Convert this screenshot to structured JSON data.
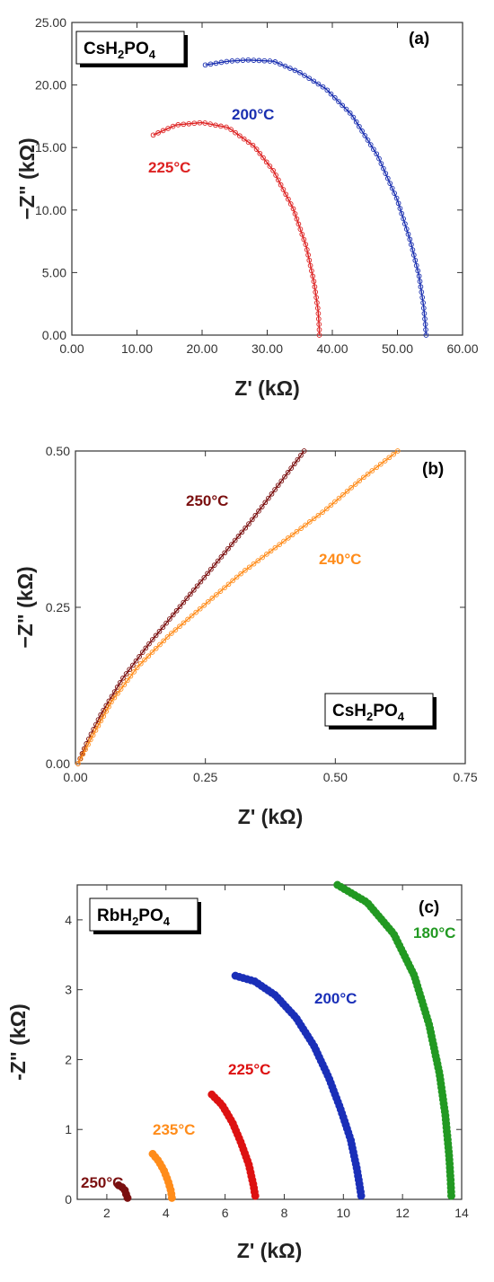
{
  "chart_data": [
    {
      "type": "scatter",
      "panel_label": "(a)",
      "sample": {
        "formula": [
          "Cs",
          "H",
          "2",
          "PO",
          "4"
        ]
      },
      "xlabel": "Z' (kΩ)",
      "ylabel": "−Z\" (kΩ)",
      "xlim": [
        0,
        60
      ],
      "ylim": [
        0,
        25
      ],
      "xticks": [
        0,
        10,
        20,
        30,
        40,
        50,
        60
      ],
      "yticks": [
        0,
        5,
        10,
        15,
        20,
        25
      ],
      "marker": "open-circle-with-line",
      "series": [
        {
          "name": "225°C",
          "color": "#dd2222",
          "x": [
            12.5,
            16,
            20,
            24,
            28,
            31,
            34,
            36,
            37.2,
            37.8,
            38.0,
            38.0
          ],
          "y": [
            16.0,
            16.8,
            17.0,
            16.6,
            15.1,
            13.1,
            10.1,
            7.1,
            4.2,
            2.0,
            0.5,
            0.0
          ]
        },
        {
          "name": "200°C",
          "color": "#1a2fb0",
          "x": [
            20.5,
            24,
            27,
            31,
            35,
            39,
            43,
            47,
            50,
            52,
            53.3,
            54.0,
            54.3,
            54.4
          ],
          "y": [
            21.6,
            21.9,
            22.0,
            21.9,
            21.0,
            19.7,
            17.6,
            14.3,
            10.8,
            7.5,
            4.8,
            2.4,
            0.8,
            0.0
          ]
        }
      ]
    },
    {
      "type": "scatter",
      "panel_label": "(b)",
      "sample": {
        "formula": [
          "Cs",
          "H",
          "2",
          "PO",
          "4"
        ]
      },
      "xlabel": "Z' (kΩ)",
      "ylabel": "−Z\" (kΩ)",
      "xlim": [
        0,
        0.75
      ],
      "ylim": [
        0,
        0.5
      ],
      "xticks": [
        0.0,
        0.25,
        0.5,
        0.75
      ],
      "yticks": [
        0.0,
        0.25,
        0.5
      ],
      "marker": "open-circle-with-line",
      "series": [
        {
          "name": "250°C",
          "color": "#7b1010",
          "x": [
            0.005,
            0.02,
            0.05,
            0.09,
            0.14,
            0.19,
            0.24,
            0.29,
            0.34,
            0.39,
            0.44
          ],
          "y": [
            0.0,
            0.03,
            0.08,
            0.135,
            0.19,
            0.24,
            0.29,
            0.34,
            0.39,
            0.445,
            0.5
          ]
        },
        {
          "name": "240°C",
          "color": "#ff8c1a",
          "x": [
            0.005,
            0.03,
            0.07,
            0.12,
            0.18,
            0.25,
            0.32,
            0.4,
            0.48,
            0.55,
            0.62
          ],
          "y": [
            0.0,
            0.04,
            0.1,
            0.155,
            0.205,
            0.255,
            0.305,
            0.355,
            0.405,
            0.455,
            0.5
          ]
        }
      ]
    },
    {
      "type": "scatter",
      "panel_label": "(c)",
      "sample": {
        "formula": [
          "Rb",
          "H",
          "2",
          "PO",
          "4"
        ]
      },
      "xlabel": "Z' (kΩ)",
      "ylabel": "-Z\" (kΩ)",
      "xlim": [
        1,
        14
      ],
      "ylim": [
        0,
        4.5
      ],
      "xticks": [
        2,
        4,
        6,
        8,
        10,
        12,
        14
      ],
      "yticks": [
        0,
        1,
        2,
        3,
        4
      ],
      "marker": "filled-circle",
      "series": [
        {
          "name": "250°C",
          "color": "#7b1010",
          "x": [
            2.4,
            2.5,
            2.6,
            2.65,
            2.7
          ],
          "y": [
            0.2,
            0.18,
            0.14,
            0.08,
            0.02
          ]
        },
        {
          "name": "235°C",
          "color": "#ff8c1a",
          "x": [
            3.55,
            3.75,
            3.95,
            4.08,
            4.17,
            4.2
          ],
          "y": [
            0.65,
            0.55,
            0.4,
            0.25,
            0.12,
            0.02
          ]
        },
        {
          "name": "225°C",
          "color": "#dd1111",
          "x": [
            5.55,
            5.9,
            6.25,
            6.55,
            6.8,
            6.95,
            7.02
          ],
          "y": [
            1.5,
            1.35,
            1.1,
            0.8,
            0.5,
            0.22,
            0.05
          ]
        },
        {
          "name": "200°C",
          "color": "#1a2fb8",
          "x": [
            6.35,
            7.0,
            7.7,
            8.4,
            9.0,
            9.5,
            9.9,
            10.25,
            10.45,
            10.55,
            10.6
          ],
          "y": [
            3.2,
            3.12,
            2.92,
            2.6,
            2.2,
            1.75,
            1.3,
            0.85,
            0.45,
            0.2,
            0.05
          ]
        },
        {
          "name": "180°C",
          "color": "#229922",
          "x": [
            9.8,
            10.8,
            11.7,
            12.4,
            12.9,
            13.25,
            13.45,
            13.58,
            13.63,
            13.65
          ],
          "y": [
            4.5,
            4.25,
            3.8,
            3.2,
            2.5,
            1.8,
            1.2,
            0.6,
            0.25,
            0.05
          ]
        }
      ]
    }
  ]
}
